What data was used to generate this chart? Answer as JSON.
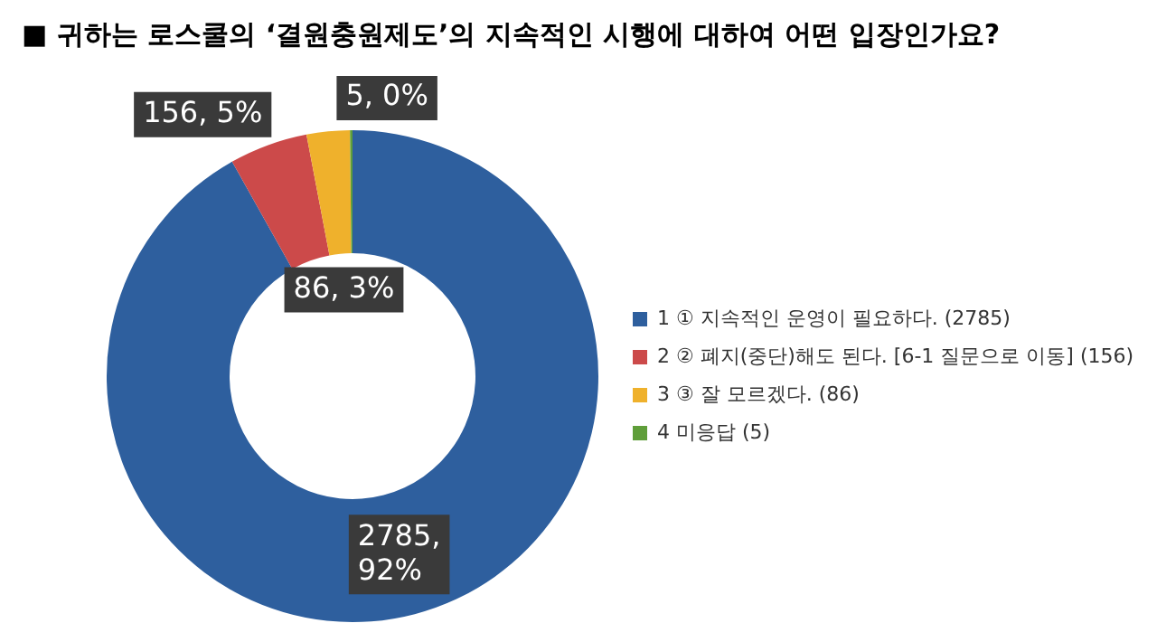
{
  "chart_data": {
    "type": "donut",
    "title": "■ 귀하는 로스쿨의 ‘결원충원제도’의 지속적인 시행에 대하여 어떤 입장인가요?",
    "categories": [
      "1 ① 지속적인 운영이 필요하다. (2785)",
      "2 ② 폐지(중단)해도 된다. [6-1 질문으로 이동] (156)",
      "3 ③ 잘 모르겠다. (86)",
      "4 미응답 (5)"
    ],
    "values": [
      2785,
      156,
      86,
      5
    ],
    "colors": [
      "#2e5f9e",
      "#cc4a4a",
      "#efb12c",
      "#5f9e3a"
    ],
    "value_labels": [
      "2785,\n92%",
      "156, 5%",
      "86, 3%",
      "5, 0%"
    ],
    "legend": "right"
  }
}
